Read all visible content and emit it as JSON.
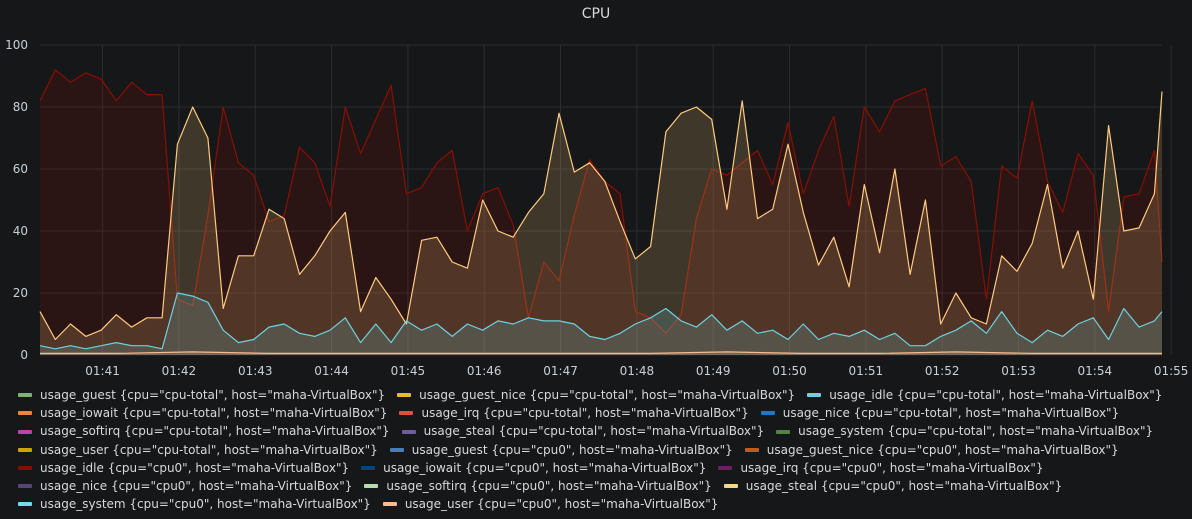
{
  "panel": {
    "title": "CPU"
  },
  "chart_data": {
    "type": "area",
    "title": "CPU",
    "xlabel": "",
    "ylabel": "",
    "ylim": [
      0,
      100
    ],
    "yticks": [
      0,
      20,
      40,
      60,
      80,
      100
    ],
    "xtick_labels": [
      "01:41",
      "01:42",
      "01:43",
      "01:44",
      "01:45",
      "01:46",
      "01:47",
      "01:48",
      "01:49",
      "01:50",
      "01:51",
      "01:52",
      "01:53",
      "01:54",
      "01:55"
    ],
    "x_range_minutes": [
      0.0,
      14.7
    ],
    "grid": true,
    "legend_position": "bottom",
    "series": [
      {
        "name": "usage_idle {cpu=\"cpu0\", host=\"maha-VirtualBox\"}",
        "color": "#890f02",
        "x": [
          0.0,
          0.2,
          0.4,
          0.6,
          0.8,
          1.0,
          1.2,
          1.4,
          1.6,
          1.8,
          2.0,
          2.2,
          2.4,
          2.6,
          2.8,
          3.0,
          3.2,
          3.4,
          3.6,
          3.8,
          4.0,
          4.2,
          4.4,
          4.6,
          4.8,
          5.0,
          5.2,
          5.4,
          5.6,
          5.8,
          6.0,
          6.2,
          6.4,
          6.6,
          6.8,
          7.0,
          7.2,
          7.4,
          7.6,
          7.8,
          8.0,
          8.2,
          8.4,
          8.6,
          8.8,
          9.0,
          9.2,
          9.4,
          9.6,
          9.8,
          10.0,
          10.2,
          10.4,
          10.6,
          10.8,
          11.0,
          11.2,
          11.4,
          11.6,
          11.8,
          12.0,
          12.2,
          12.4,
          12.6,
          12.8,
          13.0,
          13.2,
          13.4,
          13.6,
          13.8,
          14.0,
          14.2,
          14.4,
          14.6,
          14.7
        ],
        "values": [
          82,
          92,
          88,
          91,
          89,
          82,
          88,
          84,
          84,
          18,
          16,
          45,
          80,
          62,
          58,
          43,
          45,
          67,
          62,
          48,
          80,
          65,
          76,
          87,
          52,
          54,
          62,
          66,
          40,
          52,
          54,
          42,
          12,
          30,
          24,
          45,
          63,
          56,
          52,
          14,
          12,
          7,
          13,
          44,
          60,
          58,
          62,
          66,
          55,
          75,
          52,
          66,
          77,
          48,
          80,
          72,
          82,
          84,
          86,
          61,
          64,
          56,
          18,
          61,
          57,
          82,
          56,
          46,
          65,
          58,
          14,
          51,
          52,
          66,
          30
        ]
      },
      {
        "name": "usage_steal {cpu=\"cpu0\", host=\"maha-VirtualBox\"}",
        "color": "#ffcb7d",
        "x": [
          0.0,
          0.2,
          0.4,
          0.6,
          0.8,
          1.0,
          1.2,
          1.4,
          1.6,
          1.8,
          2.0,
          2.2,
          2.4,
          2.6,
          2.8,
          3.0,
          3.2,
          3.4,
          3.6,
          3.8,
          4.0,
          4.2,
          4.4,
          4.6,
          4.8,
          5.0,
          5.2,
          5.4,
          5.6,
          5.8,
          6.0,
          6.2,
          6.4,
          6.6,
          6.8,
          7.0,
          7.2,
          7.4,
          7.6,
          7.8,
          8.0,
          8.2,
          8.4,
          8.6,
          8.8,
          9.0,
          9.2,
          9.4,
          9.6,
          9.8,
          10.0,
          10.2,
          10.4,
          10.6,
          10.8,
          11.0,
          11.2,
          11.4,
          11.6,
          11.8,
          12.0,
          12.2,
          12.4,
          12.6,
          12.8,
          13.0,
          13.2,
          13.4,
          13.6,
          13.8,
          14.0,
          14.2,
          14.4,
          14.6,
          14.7
        ],
        "values": [
          14,
          5,
          10,
          6,
          8,
          13,
          9,
          12,
          12,
          68,
          80,
          70,
          15,
          32,
          32,
          47,
          44,
          26,
          32,
          40,
          46,
          14,
          25,
          18,
          10,
          37,
          38,
          30,
          28,
          50,
          40,
          38,
          46,
          52,
          78,
          59,
          62,
          56,
          43,
          31,
          35,
          72,
          78,
          80,
          76,
          47,
          82,
          44,
          47,
          68,
          46,
          29,
          38,
          22,
          55,
          33,
          60,
          26,
          50,
          10,
          20,
          12,
          10,
          32,
          27,
          36,
          55,
          28,
          40,
          18,
          74,
          40,
          41,
          52,
          85
        ]
      },
      {
        "name": "usage_system {cpu=\"cpu0\", host=\"maha-VirtualBox\"}",
        "color": "#6ed0e0",
        "x": [
          0.0,
          0.2,
          0.4,
          0.6,
          0.8,
          1.0,
          1.2,
          1.4,
          1.6,
          1.8,
          2.0,
          2.2,
          2.4,
          2.6,
          2.8,
          3.0,
          3.2,
          3.4,
          3.6,
          3.8,
          4.0,
          4.2,
          4.4,
          4.6,
          4.8,
          5.0,
          5.2,
          5.4,
          5.6,
          5.8,
          6.0,
          6.2,
          6.4,
          6.6,
          6.8,
          7.0,
          7.2,
          7.4,
          7.6,
          7.8,
          8.0,
          8.2,
          8.4,
          8.6,
          8.8,
          9.0,
          9.2,
          9.4,
          9.6,
          9.8,
          10.0,
          10.2,
          10.4,
          10.6,
          10.8,
          11.0,
          11.2,
          11.4,
          11.6,
          11.8,
          12.0,
          12.2,
          12.4,
          12.6,
          12.8,
          13.0,
          13.2,
          13.4,
          13.6,
          13.8,
          14.0,
          14.2,
          14.4,
          14.6,
          14.7
        ],
        "values": [
          3,
          2,
          3,
          2,
          3,
          4,
          3,
          3,
          2,
          20,
          19,
          17,
          8,
          4,
          5,
          9,
          10,
          7,
          6,
          8,
          12,
          4,
          10,
          4,
          11,
          8,
          10,
          6,
          10,
          8,
          11,
          10,
          12,
          11,
          11,
          10,
          6,
          5,
          7,
          10,
          12,
          15,
          11,
          9,
          13,
          8,
          11,
          7,
          8,
          5,
          10,
          5,
          7,
          6,
          8,
          5,
          7,
          3,
          3,
          6,
          8,
          11,
          7,
          14,
          7,
          4,
          8,
          6,
          10,
          12,
          5,
          15,
          9,
          11,
          14
        ]
      },
      {
        "name": "usage_user {cpu=\"cpu0\", host=\"maha-VirtualBox\"}",
        "color": "#f9ba8f",
        "x": [
          0.0,
          1.0,
          2.0,
          3.0,
          4.0,
          5.0,
          6.0,
          7.0,
          8.0,
          9.0,
          10.0,
          11.0,
          12.0,
          13.0,
          14.0,
          14.7
        ],
        "values": [
          0.5,
          0.5,
          1,
          0.5,
          0.5,
          0.5,
          0.5,
          0.5,
          0.5,
          1,
          0.5,
          0.5,
          1,
          0.5,
          0.5,
          0.5
        ]
      }
    ]
  },
  "legend": {
    "rows": [
      [
        {
          "label": "usage_guest {cpu=\"cpu-total\", host=\"maha-VirtualBox\"}",
          "color": "#7eb26d"
        },
        {
          "label": "usage_guest_nice {cpu=\"cpu-total\", host=\"maha-VirtualBox\"}",
          "color": "#eab839"
        },
        {
          "label": "usage_idle {cpu=\"cpu-total\", host=\"maha-VirtualBox\"}",
          "color": "#6ed0e0"
        }
      ],
      [
        {
          "label": "usage_iowait {cpu=\"cpu-total\", host=\"maha-VirtualBox\"}",
          "color": "#ef843c"
        },
        {
          "label": "usage_irq {cpu=\"cpu-total\", host=\"maha-VirtualBox\"}",
          "color": "#e24d42"
        },
        {
          "label": "usage_nice {cpu=\"cpu-total\", host=\"maha-VirtualBox\"}",
          "color": "#1f78c1"
        }
      ],
      [
        {
          "label": "usage_softirq {cpu=\"cpu-total\", host=\"maha-VirtualBox\"}",
          "color": "#ba43a9"
        },
        {
          "label": "usage_steal {cpu=\"cpu-total\", host=\"maha-VirtualBox\"}",
          "color": "#705da0"
        },
        {
          "label": "usage_system {cpu=\"cpu-total\", host=\"maha-VirtualBox\"}",
          "color": "#508642"
        }
      ],
      [
        {
          "label": "usage_user {cpu=\"cpu-total\", host=\"maha-VirtualBox\"}",
          "color": "#cca300"
        },
        {
          "label": "usage_guest {cpu=\"cpu0\", host=\"maha-VirtualBox\"}",
          "color": "#447ebc"
        },
        {
          "label": "usage_guest_nice {cpu=\"cpu0\", host=\"maha-VirtualBox\"}",
          "color": "#c15c17"
        }
      ],
      [
        {
          "label": "usage_idle {cpu=\"cpu0\", host=\"maha-VirtualBox\"}",
          "color": "#890f02"
        },
        {
          "label": "usage_iowait {cpu=\"cpu0\", host=\"maha-VirtualBox\"}",
          "color": "#0a437c"
        },
        {
          "label": "usage_irq {cpu=\"cpu0\", host=\"maha-VirtualBox\"}",
          "color": "#6d1f62"
        }
      ],
      [
        {
          "label": "usage_nice {cpu=\"cpu0\", host=\"maha-VirtualBox\"}",
          "color": "#584477"
        },
        {
          "label": "usage_softirq {cpu=\"cpu0\", host=\"maha-VirtualBox\"}",
          "color": "#b7dbab"
        },
        {
          "label": "usage_steal {cpu=\"cpu0\", host=\"maha-VirtualBox\"}",
          "color": "#f4d598"
        }
      ],
      [
        {
          "label": "usage_system {cpu=\"cpu0\", host=\"maha-VirtualBox\"}",
          "color": "#70dbed"
        },
        {
          "label": "usage_user {cpu=\"cpu0\", host=\"maha-VirtualBox\"}",
          "color": "#f9ba8f"
        }
      ]
    ]
  }
}
